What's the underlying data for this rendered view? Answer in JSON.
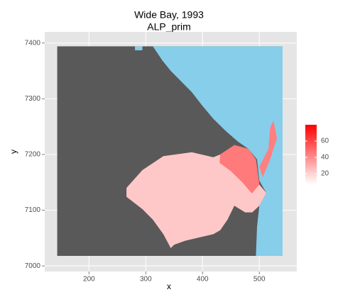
{
  "chart_data": {
    "type": "raster",
    "title": "Wide Bay, 1993",
    "subtitle": "ALP_prim",
    "x_label": "x",
    "y_label": "y",
    "xlim": [
      122,
      566
    ],
    "ylim": [
      6990,
      7420
    ],
    "xticks": [
      200,
      300,
      400,
      500
    ],
    "yticks": [
      7000,
      7100,
      7200,
      7300,
      7400
    ],
    "grid": true,
    "polygons": [
      {
        "color": "#595959",
        "x": [
          144,
          541,
          541,
          144
        ],
        "y": [
          7394,
          7394,
          7018,
          7018
        ]
      },
      {
        "color": "#87ceeb",
        "x": [
          312.5,
          541,
          541,
          494,
          496,
          500,
          512.5,
          500,
          496,
          481,
          462.5,
          441,
          419,
          400,
          381,
          362.5,
          344,
          329
        ],
        "y": [
          7394,
          7394,
          7018,
          7018,
          7070,
          7108,
          7131,
          7153,
          7191,
          7210,
          7223,
          7242,
          7264,
          7287,
          7312,
          7331,
          7350,
          7369
        ]
      },
      {
        "color": "#87ceeb",
        "x": [
          281,
          294,
          294,
          281
        ],
        "y": [
          7394,
          7394,
          7387,
          7387
        ]
      },
      {
        "color": "#ffc8c8",
        "x": [
          266,
          294,
          331,
          381,
          419,
          441,
          456,
          481,
          494,
          500,
          512.5,
          500,
          487.5,
          475,
          456,
          444,
          431,
          419,
          394,
          369,
          350,
          344,
          331,
          312.5,
          294,
          266
        ],
        "y": [
          7140,
          7172,
          7197,
          7204,
          7195,
          7204,
          7217,
          7210,
          7191,
          7146,
          7131,
          7108,
          7096,
          7096,
          7108,
          7083,
          7064,
          7057,
          7051,
          7045,
          7038,
          7032,
          7057,
          7083,
          7102,
          7124
        ]
      },
      {
        "color": "#ff7a7a",
        "x": [
          431,
          456,
          481,
          494,
          500,
          487,
          470,
          450,
          430
        ],
        "y": [
          7200,
          7217,
          7210,
          7191,
          7146,
          7130,
          7150,
          7170,
          7185
        ]
      },
      {
        "color": "#ff8080",
        "x": [
          500,
          516,
          519,
          525,
          531,
          519,
          506
        ],
        "y": [
          7178,
          7210,
          7248,
          7261,
          7229,
          7191,
          7159
        ]
      }
    ],
    "colorbar": {
      "colors": [
        "#ffffff",
        "#ff0000"
      ],
      "lim": [
        7,
        80
      ],
      "ticks": [
        20,
        40,
        60
      ]
    }
  }
}
